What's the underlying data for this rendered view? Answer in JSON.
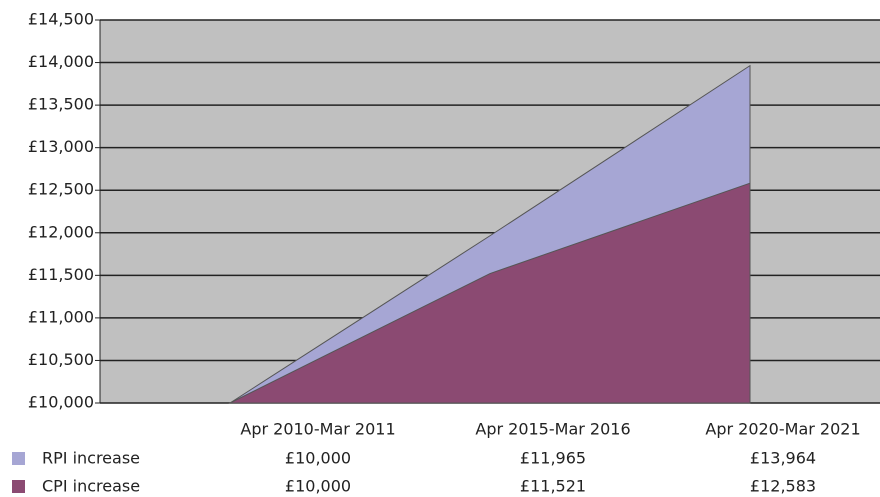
{
  "chart_data": {
    "type": "area",
    "categories": [
      "Apr 2010-Mar 2011",
      "Apr 2015-Mar 2016",
      "Apr 2020-Mar 2021"
    ],
    "series": [
      {
        "name": "RPI increase",
        "color": "#a6a6d4",
        "values": [
          10000,
          11965,
          13964
        ],
        "value_labels": [
          "£10,000",
          "£11,965",
          "£13,964"
        ]
      },
      {
        "name": "CPI increase",
        "color": "#8b4a72",
        "values": [
          10000,
          11521,
          12583
        ],
        "value_labels": [
          "£10,000",
          "£11,521",
          "£12,583"
        ]
      }
    ],
    "ylim": [
      10000,
      14500
    ],
    "yticks": [
      {
        "value": 10000,
        "label": "£10,000"
      },
      {
        "value": 10500,
        "label": "£10,500"
      },
      {
        "value": 11000,
        "label": "£11,000"
      },
      {
        "value": 11500,
        "label": "£11,500"
      },
      {
        "value": 12000,
        "label": "£12,000"
      },
      {
        "value": 12500,
        "label": "£12,500"
      },
      {
        "value": 13000,
        "label": "£13,000"
      },
      {
        "value": 13500,
        "label": "£13,500"
      },
      {
        "value": 14000,
        "label": "£14,000"
      },
      {
        "value": 14500,
        "label": "£14,500"
      }
    ],
    "plot_background": "#c0c0c0",
    "grid": true
  }
}
